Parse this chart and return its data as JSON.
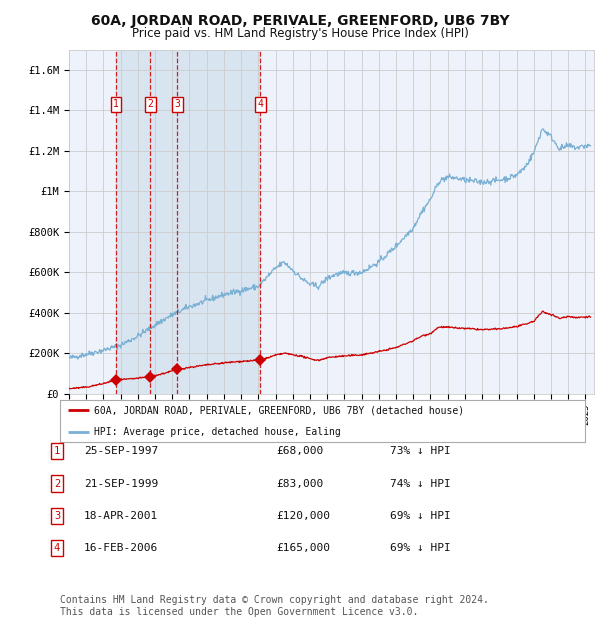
{
  "title": "60A, JORDAN ROAD, PERIVALE, GREENFORD, UB6 7BY",
  "subtitle": "Price paid vs. HM Land Registry's House Price Index (HPI)",
  "title_fontsize": 10,
  "subtitle_fontsize": 8.5,
  "background_color": "#ffffff",
  "plot_bg_color": "#eef2fa",
  "grid_color": "#cccccc",
  "hpi_color": "#7ab0d4",
  "price_color": "#cc0000",
  "vline_color": "#cc0000",
  "shade_color": "#d8e4f0",
  "ylim": [
    0,
    1700000
  ],
  "xlim_start": 1995.0,
  "xlim_end": 2025.5,
  "ytick_labels": [
    "£0",
    "£200K",
    "£400K",
    "£600K",
    "£800K",
    "£1M",
    "£1.2M",
    "£1.4M",
    "£1.6M"
  ],
  "ytick_values": [
    0,
    200000,
    400000,
    600000,
    800000,
    1000000,
    1200000,
    1400000,
    1600000
  ],
  "sale_dates": [
    1997.73,
    1999.72,
    2001.29,
    2006.12
  ],
  "sale_prices": [
    68000,
    83000,
    120000,
    165000
  ],
  "sale_labels": [
    "1",
    "2",
    "3",
    "4"
  ],
  "legend_property": "60A, JORDAN ROAD, PERIVALE, GREENFORD, UB6 7BY (detached house)",
  "legend_hpi": "HPI: Average price, detached house, Ealing",
  "table_rows": [
    [
      "1",
      "25-SEP-1997",
      "£68,000",
      "73% ↓ HPI"
    ],
    [
      "2",
      "21-SEP-1999",
      "£83,000",
      "74% ↓ HPI"
    ],
    [
      "3",
      "18-APR-2001",
      "£120,000",
      "69% ↓ HPI"
    ],
    [
      "4",
      "16-FEB-2006",
      "£165,000",
      "69% ↓ HPI"
    ]
  ],
  "footer": "Contains HM Land Registry data © Crown copyright and database right 2024.\nThis data is licensed under the Open Government Licence v3.0.",
  "footer_fontsize": 7
}
